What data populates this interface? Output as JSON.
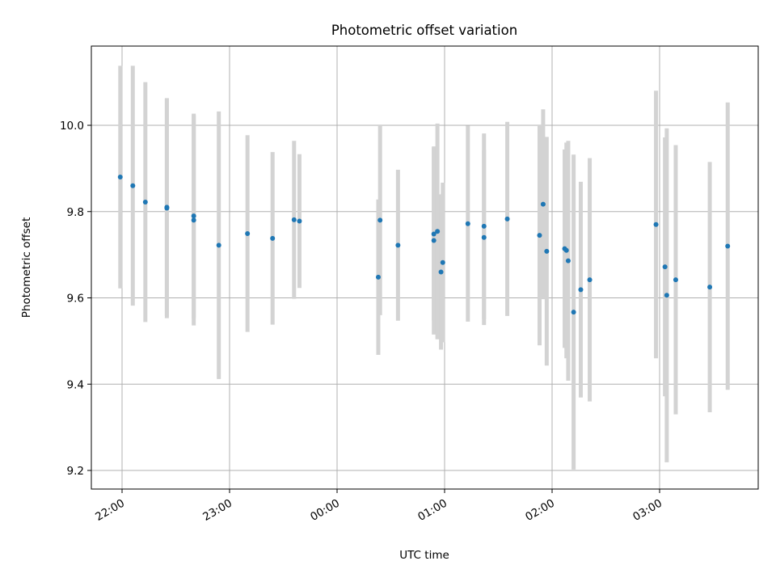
{
  "chart_data": {
    "type": "scatter",
    "title": "Photometric offset variation",
    "xlabel": "UTC time",
    "ylabel": "Photometric offset",
    "x_ticks": [
      "22:00",
      "23:00",
      "00:00",
      "01:00",
      "02:00",
      "03:00"
    ],
    "y_ticks": [
      "9.2",
      "9.4",
      "9.6",
      "9.8",
      "10.0"
    ],
    "grid": true,
    "colors": {
      "points": "#1f77b4",
      "errorbars": "#d3d3d3",
      "grid": "#b0b0b0"
    },
    "points": [
      {
        "t": "21:59",
        "y": 9.88,
        "err": 0.258
      },
      {
        "t": "22:06",
        "y": 9.86,
        "err": 0.278
      },
      {
        "t": "22:13",
        "y": 9.822,
        "err": 0.278
      },
      {
        "t": "22:25",
        "y": 9.808,
        "err": 0.255
      },
      {
        "t": "22:25",
        "y": 9.81,
        "err": 0.251
      },
      {
        "t": "22:40",
        "y": 9.78,
        "err": 0.244
      },
      {
        "t": "22:40",
        "y": 9.79,
        "err": 0.237
      },
      {
        "t": "22:54",
        "y": 9.722,
        "err": 0.31
      },
      {
        "t": "23:10",
        "y": 9.749,
        "err": 0.228
      },
      {
        "t": "23:24",
        "y": 9.738,
        "err": 0.2
      },
      {
        "t": "23:36",
        "y": 9.781,
        "err": 0.183
      },
      {
        "t": "23:39",
        "y": 9.778,
        "err": 0.155
      },
      {
        "t": "00:24",
        "y": 9.78,
        "err": 0.22
      },
      {
        "t": "00:23",
        "y": 9.648,
        "err": 0.18
      },
      {
        "t": "00:34",
        "y": 9.722,
        "err": 0.175
      },
      {
        "t": "00:54",
        "y": 9.733,
        "err": 0.218
      },
      {
        "t": "00:54",
        "y": 9.748,
        "err": 0.2
      },
      {
        "t": "00:56",
        "y": 9.754,
        "err": 0.25
      },
      {
        "t": "00:58",
        "y": 9.66,
        "err": 0.18
      },
      {
        "t": "00:59",
        "y": 9.682,
        "err": 0.185
      },
      {
        "t": "01:13",
        "y": 9.772,
        "err": 0.227
      },
      {
        "t": "01:22",
        "y": 9.766,
        "err": 0.215
      },
      {
        "t": "01:22",
        "y": 9.74,
        "err": 0.203
      },
      {
        "t": "01:35",
        "y": 9.783,
        "err": 0.225
      },
      {
        "t": "01:53",
        "y": 9.745,
        "err": 0.255
      },
      {
        "t": "01:55",
        "y": 9.817,
        "err": 0.22
      },
      {
        "t": "01:57",
        "y": 9.708,
        "err": 0.265
      },
      {
        "t": "02:07",
        "y": 9.714,
        "err": 0.23
      },
      {
        "t": "02:08",
        "y": 9.71,
        "err": 0.25
      },
      {
        "t": "02:09",
        "y": 9.686,
        "err": 0.278
      },
      {
        "t": "02:12",
        "y": 9.567,
        "err": 0.365
      },
      {
        "t": "02:16",
        "y": 9.619,
        "err": 0.25
      },
      {
        "t": "02:21",
        "y": 9.642,
        "err": 0.282
      },
      {
        "t": "02:58",
        "y": 9.77,
        "err": 0.31
      },
      {
        "t": "03:03",
        "y": 9.672,
        "err": 0.3
      },
      {
        "t": "03:04",
        "y": 9.606,
        "err": 0.387
      },
      {
        "t": "03:09",
        "y": 9.642,
        "err": 0.312
      },
      {
        "t": "03:28",
        "y": 9.625,
        "err": 0.29
      },
      {
        "t": "03:38",
        "y": 9.72,
        "err": 0.333
      }
    ]
  }
}
